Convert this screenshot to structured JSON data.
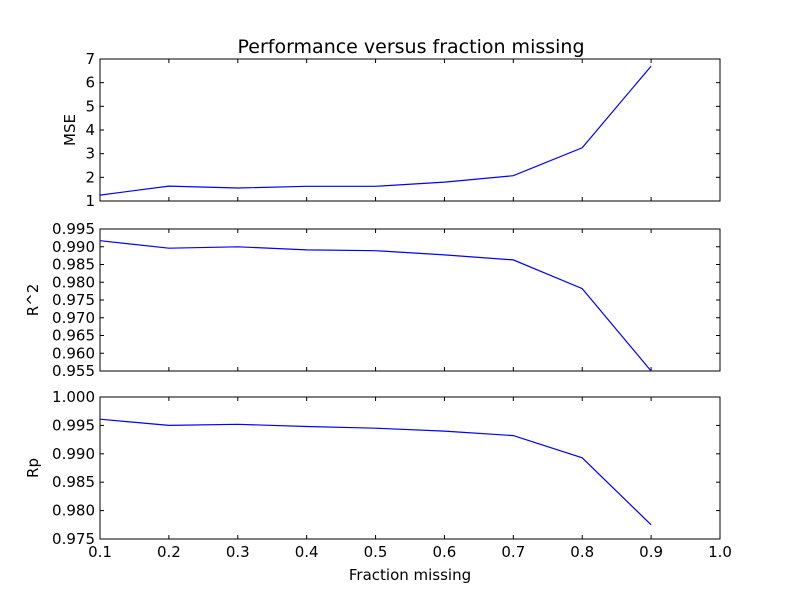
{
  "chart_data": {
    "type": "line",
    "title": "Performance versus fraction missing",
    "xlabel": "Fraction missing",
    "xlim": [
      0.1,
      1.0
    ],
    "xticks": [
      "0.1",
      "0.2",
      "0.3",
      "0.4",
      "0.5",
      "0.6",
      "0.7",
      "0.8",
      "0.9",
      "1.0"
    ],
    "line_color": "#0000ff",
    "grid": false,
    "subplots": [
      {
        "ylabel": "MSE",
        "ylim": [
          1,
          7
        ],
        "yticks": [
          "1",
          "2",
          "3",
          "4",
          "5",
          "6",
          "7"
        ],
        "x": [
          0.1,
          0.2,
          0.3,
          0.4,
          0.5,
          0.6,
          0.7,
          0.8,
          0.9
        ],
        "y": [
          1.25,
          1.63,
          1.55,
          1.62,
          1.62,
          1.8,
          2.07,
          3.25,
          6.7
        ]
      },
      {
        "ylabel": "R^2",
        "ylim": [
          0.955,
          0.995
        ],
        "yticks": [
          "0.955",
          "0.960",
          "0.965",
          "0.970",
          "0.975",
          "0.980",
          "0.985",
          "0.990",
          "0.995"
        ],
        "x": [
          0.1,
          0.2,
          0.3,
          0.4,
          0.5,
          0.6,
          0.7,
          0.8,
          0.9
        ],
        "y": [
          0.9917,
          0.9896,
          0.99,
          0.9891,
          0.9889,
          0.9877,
          0.9863,
          0.9782,
          0.955
        ]
      },
      {
        "ylabel": "Rp",
        "ylim": [
          0.975,
          1.0
        ],
        "yticks": [
          "0.975",
          "0.980",
          "0.985",
          "0.990",
          "0.995",
          "1.000"
        ],
        "x": [
          0.1,
          0.2,
          0.3,
          0.4,
          0.5,
          0.6,
          0.7,
          0.8,
          0.9
        ],
        "y": [
          0.9961,
          0.995,
          0.9952,
          0.9948,
          0.9945,
          0.994,
          0.9932,
          0.9893,
          0.9775
        ]
      }
    ]
  }
}
